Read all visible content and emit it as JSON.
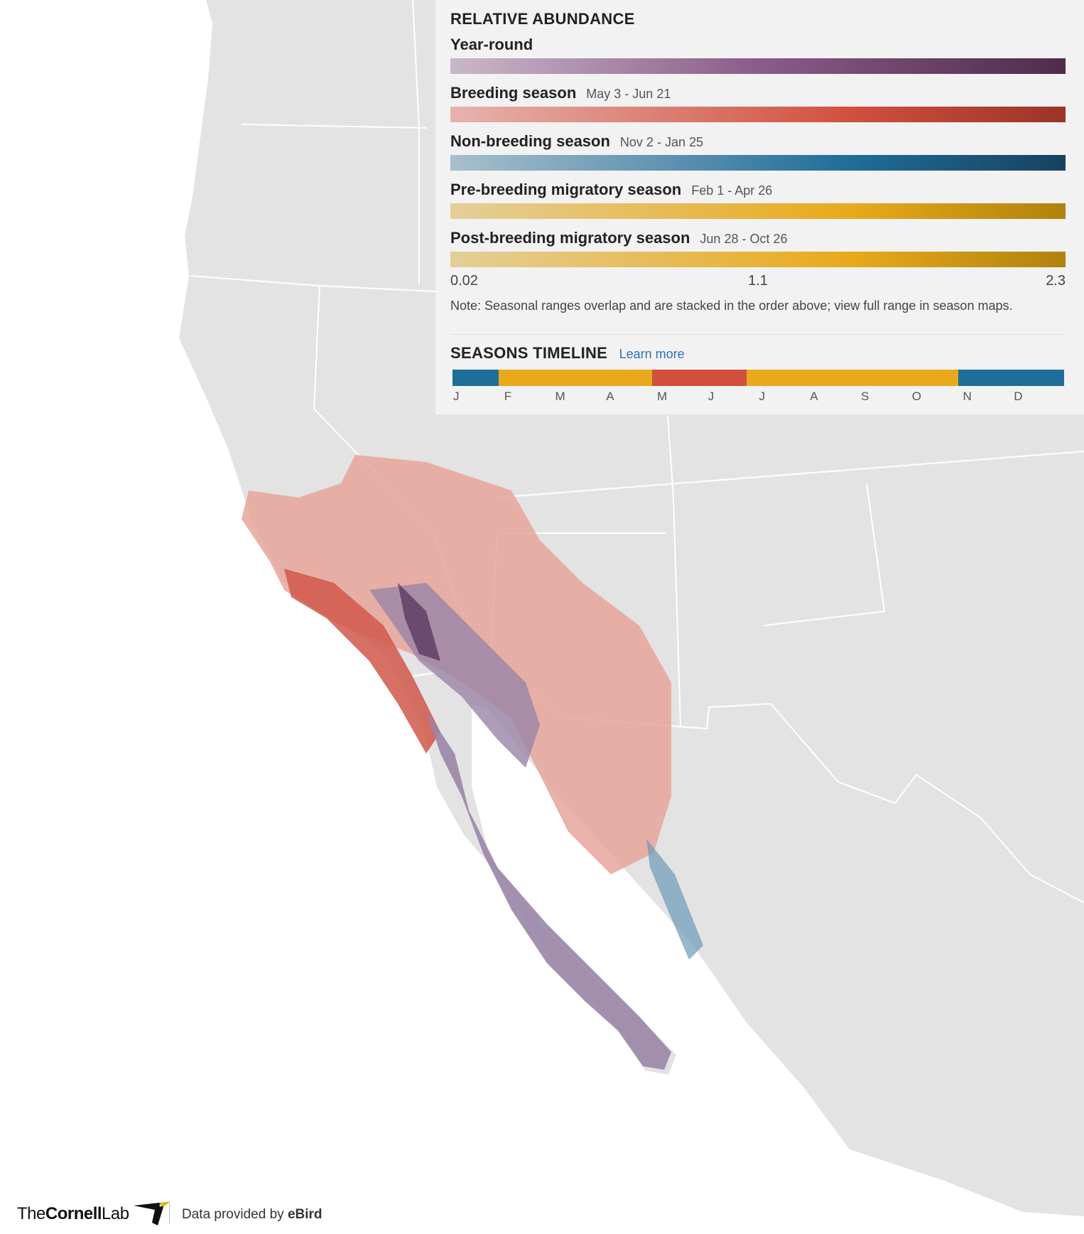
{
  "legend": {
    "title": "RELATIVE ABUNDANCE",
    "seasons": [
      {
        "name": "Year-round"
      },
      {
        "name": "Breeding season",
        "dates": "May 3 - Jun 21"
      },
      {
        "name": "Non-breeding season",
        "dates": "Nov 2 - Jan 25"
      },
      {
        "name": "Pre-breeding migratory season",
        "dates": "Feb 1 - Apr 26"
      },
      {
        "name": "Post-breeding migratory season",
        "dates": "Jun 28 - Oct 26"
      }
    ],
    "scale_labels": [
      0.02,
      1.1,
      2.3
    ],
    "note": "Note: Seasonal ranges overlap and are stacked in the order above; view full range in season maps."
  },
  "timeline": {
    "title": "SEASONS TIMELINE",
    "link": "Learn more",
    "months": [
      "J",
      "F",
      "M",
      "A",
      "M",
      "J",
      "J",
      "A",
      "S",
      "O",
      "N",
      "D"
    ]
  },
  "footer": {
    "logo": [
      "The",
      "Cornell",
      "Lab"
    ],
    "credit": "Data provided by",
    "source": "eBird"
  }
}
